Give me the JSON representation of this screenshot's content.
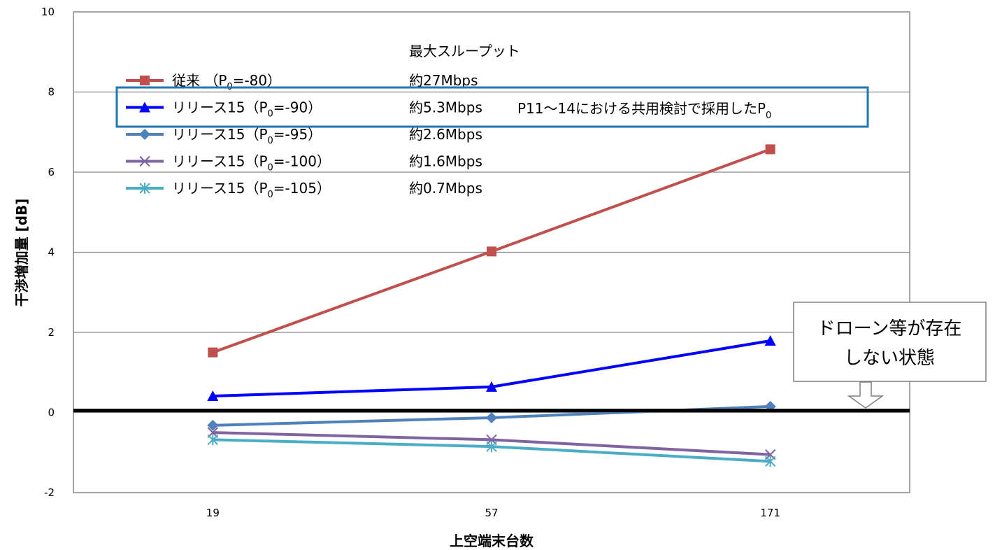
{
  "chart_data": {
    "type": "line",
    "xlabel": "上空端末台数",
    "ylabel": "干渉増加量 [dB]",
    "categories": [
      "19",
      "57",
      "171"
    ],
    "ylim": [
      -2,
      10
    ],
    "yticks": [
      "-2",
      "0",
      "2",
      "4",
      "6",
      "8",
      "10"
    ],
    "grid": true,
    "legend_header": "最大スループット",
    "series": [
      {
        "name": "従来 （P0=-80）",
        "throughput": "約27Mbps",
        "color": "#C0504D",
        "marker": "square",
        "values": [
          1.5,
          4.02,
          6.57
        ]
      },
      {
        "name": "リリース15（P0=-90）",
        "throughput": "約5.3Mbps",
        "color": "#0000FF",
        "marker": "triangle",
        "values": [
          0.41,
          0.64,
          1.79
        ]
      },
      {
        "name": "リリース15（P0=-95）",
        "throughput": "約2.6Mbps",
        "color": "#4F81BD",
        "marker": "diamond",
        "values": [
          -0.32,
          -0.13,
          0.15
        ]
      },
      {
        "name": "リリース15（P0=-100）",
        "throughput": "約1.6Mbps",
        "color": "#8064A2",
        "marker": "x",
        "values": [
          -0.5,
          -0.68,
          -1.05
        ]
      },
      {
        "name": "リリース15（P0=-105）",
        "throughput": "約0.7Mbps",
        "color": "#4BACC6",
        "marker": "star",
        "values": [
          -0.68,
          -0.85,
          -1.22
        ]
      }
    ],
    "annotations": {
      "highlight_text": "P11～14における共用検討で採用したP0",
      "callout_line1": "ドローン等が存在",
      "callout_line2": "しない状態",
      "baseline_value": 0.05
    }
  }
}
